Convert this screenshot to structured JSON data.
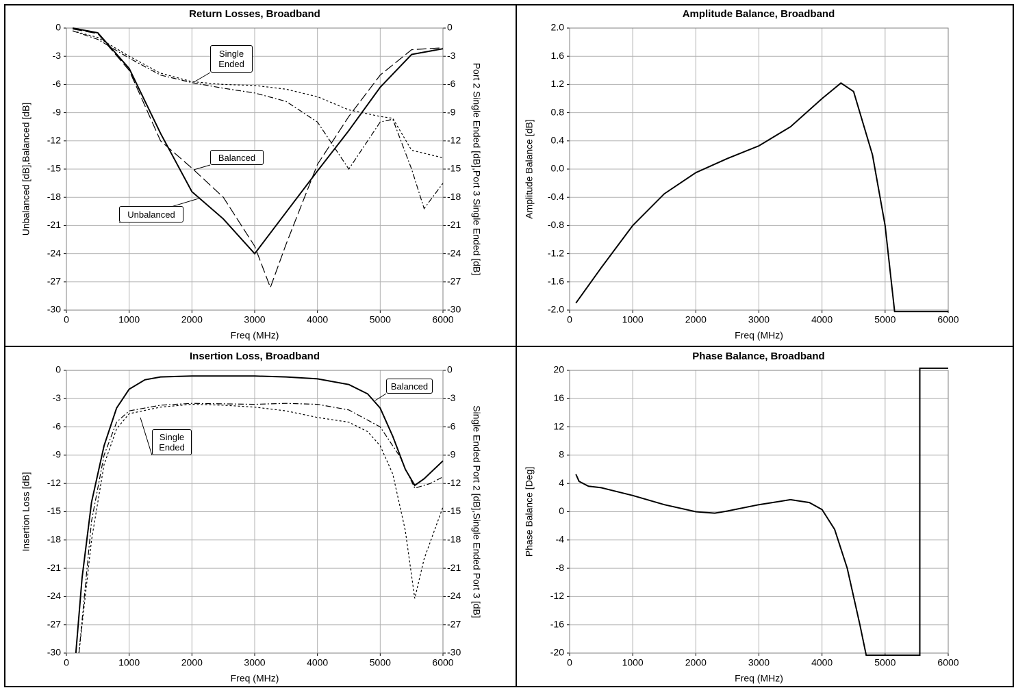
{
  "chart_data": [
    {
      "type": "line",
      "title": "Return Losses, Broadband",
      "xlabel": "Freq (MHz)",
      "ylabel": "Unbalanced [dB],Balanced [dB]",
      "y2label": "Port 2 Single Ended [dB],Port 3 Single Ended [dB]",
      "xlim": [
        0,
        6000
      ],
      "xticks": [
        0,
        1000,
        2000,
        3000,
        4000,
        5000,
        6000
      ],
      "ylim": [
        -30,
        0
      ],
      "yticks": [
        0,
        -3,
        -6,
        -9,
        -12,
        -15,
        -18,
        -21,
        -24,
        -27,
        -30
      ],
      "y2lim": [
        -30,
        0
      ],
      "y2ticks": [
        0,
        -3,
        -6,
        -9,
        -12,
        -15,
        -18,
        -21,
        -24,
        -27,
        -30
      ],
      "grid": true,
      "series": [
        {
          "name": "Unbalanced",
          "color": "#000000",
          "dash": "solid",
          "x": [
            100,
            500,
            1000,
            1500,
            2000,
            2500,
            3000,
            3500,
            4000,
            4500,
            5000,
            5500,
            6000
          ],
          "values": [
            0,
            -0.5,
            -4.3,
            -11.2,
            -17.4,
            -20.3,
            -24,
            -19.6,
            -15.2,
            -10.9,
            -6.3,
            -2.8,
            -2.2
          ]
        },
        {
          "name": "Balanced",
          "color": "#000000",
          "dash": "long",
          "x": [
            100,
            500,
            1000,
            1500,
            2000,
            2500,
            3000,
            3250,
            3500,
            4000,
            4500,
            5000,
            5500,
            6000
          ],
          "values": [
            -0.1,
            -0.6,
            -4.5,
            -12,
            -14.9,
            -18,
            -23.2,
            -27.6,
            -23,
            -14.5,
            -9.4,
            -5,
            -2.3,
            -2.1
          ]
        },
        {
          "name": "Single Ended",
          "color": "#000000",
          "dash": "dot",
          "axis": "y2",
          "x": [
            100,
            500,
            1000,
            1500,
            2000,
            2500,
            3000,
            3500,
            4000,
            4500,
            5000,
            5200,
            5500,
            6000
          ],
          "values": [
            -0.3,
            -1,
            -3,
            -4.8,
            -5.7,
            -6,
            -6.1,
            -6.5,
            -7.3,
            -8.7,
            -9.4,
            -9.6,
            -13,
            -13.8
          ]
        },
        {
          "color": "#000000",
          "dash": "dotdash",
          "axis": "y2",
          "x": [
            100,
            500,
            1000,
            1500,
            2000,
            2500,
            3000,
            3500,
            4000,
            4500,
            5000,
            5200,
            5500,
            5700,
            6000
          ],
          "values": [
            -0.3,
            -1.2,
            -3.2,
            -5,
            -5.8,
            -6.4,
            -6.9,
            -7.8,
            -10,
            -15,
            -10,
            -9.7,
            -15,
            -19.2,
            -16.5
          ]
        }
      ]
    },
    {
      "type": "line",
      "title": "Amplitude Balance, Broadband",
      "xlabel": "Freq (MHz)",
      "ylabel": "Amplitude Balance [dB]",
      "xlim": [
        0,
        6000
      ],
      "xticks": [
        0,
        1000,
        2000,
        3000,
        4000,
        5000,
        6000
      ],
      "ylim": [
        -2,
        2
      ],
      "yticks": [
        {
          "value": 2,
          "label": "2.0"
        },
        1.6,
        1.2,
        0.8,
        0.4,
        {
          "value": 0,
          "label": "0.0"
        },
        -0.4,
        -0.8,
        -1.2,
        -1.6,
        {
          "value": -2,
          "label": "-2.0"
        }
      ],
      "grid": true,
      "series": [
        {
          "color": "#000000",
          "dash": "solid",
          "x": [
            100,
            500,
            1000,
            1500,
            2000,
            2500,
            3000,
            3500,
            4000,
            4300,
            4500,
            4800,
            5000,
            5150,
            6000
          ],
          "values": [
            -1.9,
            -1.4,
            -0.8,
            -0.35,
            -0.05,
            0.15,
            0.33,
            0.6,
            1.0,
            1.22,
            1.1,
            0.2,
            -0.8,
            -2.02,
            -2.02
          ]
        }
      ]
    },
    {
      "type": "line",
      "title": "Insertion Loss, Broadband",
      "xlabel": "Freq (MHz)",
      "ylabel": "Insertion Loss [dB]",
      "y2label": "Single Ended Port 2 [dB],Single Ended Port 3 [dB]",
      "xlim": [
        0,
        6000
      ],
      "xticks": [
        0,
        1000,
        2000,
        3000,
        4000,
        5000,
        6000
      ],
      "ylim": [
        -30,
        0
      ],
      "yticks": [
        0,
        -3,
        -6,
        -9,
        -12,
        -15,
        -18,
        -21,
        -24,
        -27,
        -30
      ],
      "y2lim": [
        -30,
        0
      ],
      "y2ticks": [
        0,
        -3,
        -6,
        -9,
        -12,
        -15,
        -18,
        -21,
        -24,
        -27,
        -30
      ],
      "grid": true,
      "series": [
        {
          "name": "Balanced",
          "color": "#000000",
          "dash": "solid",
          "x": [
            150,
            250,
            400,
            600,
            800,
            1000,
            1250,
            1500,
            2000,
            3000,
            3500,
            4000,
            4500,
            4800,
            5000,
            5200,
            5400,
            5550,
            5700,
            6000
          ],
          "values": [
            -30,
            -22,
            -14,
            -8,
            -4,
            -2,
            -1,
            -0.7,
            -0.6,
            -0.6,
            -0.7,
            -0.9,
            -1.5,
            -2.5,
            -4,
            -7,
            -10.5,
            -12.2,
            -11.5,
            -9.6
          ]
        },
        {
          "name": "Single Ended",
          "color": "#000000",
          "dash": "dotdash",
          "axis": "y2",
          "x": [
            200,
            400,
            600,
            800,
            1000,
            1500,
            2000,
            3000,
            3500,
            4000,
            4500,
            5000,
            5300,
            5550,
            5800,
            6000
          ],
          "values": [
            -30,
            -16,
            -9,
            -5.5,
            -4.3,
            -3.7,
            -3.5,
            -3.6,
            -3.5,
            -3.6,
            -4.2,
            -6,
            -9,
            -12.5,
            -12,
            -11.3
          ]
        },
        {
          "color": "#000000",
          "dash": "dot",
          "axis": "y2",
          "x": [
            200,
            400,
            600,
            800,
            1000,
            1500,
            2000,
            2500,
            3000,
            3500,
            4000,
            4500,
            4800,
            5000,
            5200,
            5400,
            5550,
            5700,
            6000
          ],
          "values": [
            -30,
            -18,
            -10,
            -6.2,
            -4.6,
            -3.9,
            -3.6,
            -3.7,
            -3.9,
            -4.3,
            -5,
            -5.5,
            -6.5,
            -8,
            -11,
            -17,
            -24.2,
            -20,
            -14.5
          ]
        }
      ]
    },
    {
      "type": "line",
      "title": "Phase Balance, Broadband",
      "xlabel": "Freq (MHz)",
      "ylabel": "Phase Balance [Deg]",
      "xlim": [
        0,
        6000
      ],
      "xticks": [
        0,
        1000,
        2000,
        3000,
        4000,
        5000,
        6000
      ],
      "ylim": [
        -20,
        20
      ],
      "yticks": [
        20,
        16,
        12,
        8,
        4,
        0,
        -4,
        -8,
        -12,
        -16,
        -20
      ],
      "grid": true,
      "series": [
        {
          "color": "#000000",
          "dash": "solid",
          "x": [
            100,
            150,
            300,
            500,
            1000,
            1500,
            2000,
            2300,
            2500,
            3000,
            3500,
            3800,
            4000,
            4200,
            4400,
            4600,
            4700,
            5550,
            5550,
            6000
          ],
          "values": [
            5.3,
            4.3,
            3.6,
            3.4,
            2.3,
            1,
            0,
            -0.2,
            0.1,
            1,
            1.7,
            1.3,
            0.3,
            -2.5,
            -8,
            -16,
            -20.3,
            -20.3,
            20.3,
            20.3
          ]
        }
      ]
    }
  ]
}
